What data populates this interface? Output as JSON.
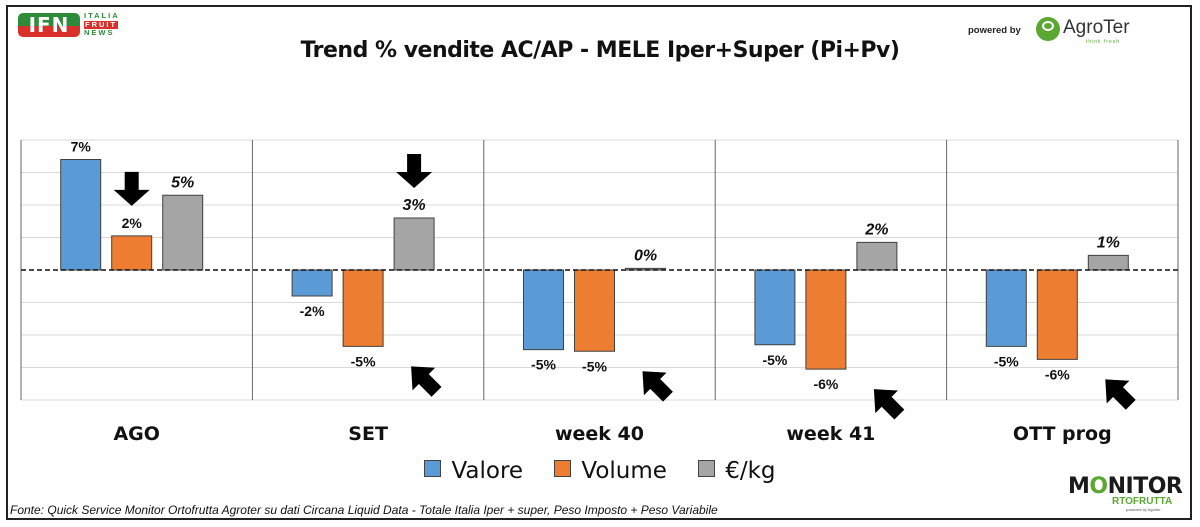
{
  "header": {
    "ifn_logo": {
      "mark": "IFN",
      "line1": "ITALIA",
      "line2": "FRUIT",
      "line3": "NEWS"
    },
    "powered_by": "powered by",
    "agroter_logo": {
      "name": "AgroTer",
      "tagline": "think fresh"
    }
  },
  "footer": {
    "source": "Fonte: Quick Service Monitor Ortofrutta Agroter su dati Circana Liquid Data - Totale Italia Iper + super, Peso Imposto + Peso Variabile",
    "monitor_logo": {
      "line1_a": "M",
      "line1_o": "O",
      "line1_b": "NITOR",
      "line2": "RTOFRUTTA",
      "line3": "powered by Agroter"
    }
  },
  "colors": {
    "valore": "#5b9bd5",
    "volume": "#ed7d31",
    "eur_kg": "#a5a5a5"
  },
  "chart_data": {
    "type": "bar",
    "title": "Trend % vendite AC/AP - MELE  Iper+Super (Pi+Pv)",
    "xlabel": "",
    "ylabel": "",
    "ylim": [
      -8,
      8
    ],
    "grid": true,
    "legend": "bottom",
    "categories": [
      "AGO",
      "SET",
      "week 40",
      "week 41",
      "OTT prog"
    ],
    "series": [
      {
        "name": "Valore",
        "values": [
          6.8,
          -1.6,
          -4.9,
          -4.6,
          -4.7
        ],
        "labels": [
          "7%",
          "-2%",
          "-5%",
          "-5%",
          "-5%"
        ]
      },
      {
        "name": "Volume",
        "values": [
          2.1,
          -4.7,
          -5.0,
          -6.1,
          -5.5
        ],
        "labels": [
          "2%",
          "-5%",
          "-5%",
          "-6%",
          "-6%"
        ]
      },
      {
        "name": "€/kg",
        "values": [
          4.6,
          3.2,
          0.1,
          1.7,
          0.9
        ],
        "labels": [
          "5%",
          "3%",
          "0%",
          "2%",
          "1%"
        ]
      }
    ],
    "annotations": [
      {
        "type": "arrow-down",
        "category": "AGO",
        "series": "Volume"
      },
      {
        "type": "arrow-down",
        "category": "SET",
        "series": "€/kg"
      },
      {
        "type": "arrow-up-left",
        "category": "SET",
        "series": "Volume"
      },
      {
        "type": "arrow-up-left",
        "category": "week 40",
        "series": "Volume"
      },
      {
        "type": "arrow-up-left",
        "category": "week 41",
        "series": "Volume"
      },
      {
        "type": "arrow-up-left",
        "category": "OTT prog",
        "series": "Volume"
      }
    ]
  }
}
